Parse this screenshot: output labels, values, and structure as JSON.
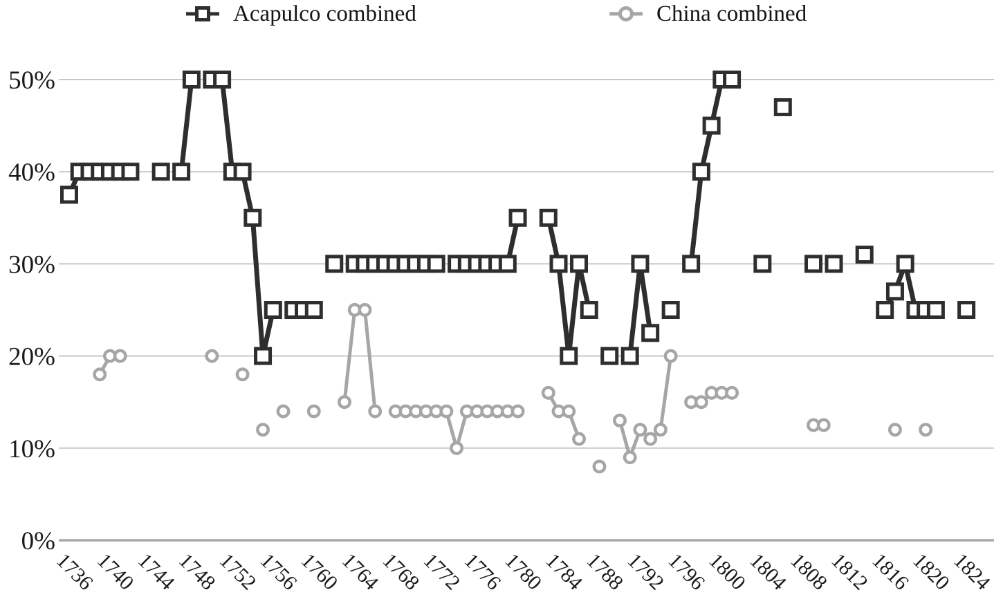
{
  "legend": {
    "items": [
      {
        "label": "Acapulco combined",
        "marker": "square-marker-icon"
      },
      {
        "label": "China combined",
        "marker": "circle-marker-icon"
      }
    ]
  },
  "chart_data": {
    "type": "line",
    "title": "",
    "xlabel": "",
    "ylabel": "",
    "grid": true,
    "legend_position": "top",
    "x_range": [
      1736,
      1824
    ],
    "ylim": [
      0,
      55
    ],
    "y_ticks": [
      {
        "value": 0,
        "label": "0%"
      },
      {
        "value": 10,
        "label": "10%"
      },
      {
        "value": 20,
        "label": "20%"
      },
      {
        "value": 30,
        "label": "30%"
      },
      {
        "value": 40,
        "label": "40%"
      },
      {
        "value": 50,
        "label": "50%"
      }
    ],
    "x_ticks": [
      "1736",
      "1740",
      "1744",
      "1748",
      "1752",
      "1756",
      "1760",
      "1764",
      "1768",
      "1772",
      "1776",
      "1780",
      "1784",
      "1788",
      "1792",
      "1796",
      "1800",
      "1804",
      "1808",
      "1812",
      "1816",
      "1820",
      "1824"
    ],
    "grid_color": "#c7c7c7",
    "axis_color": "#a9a9a9",
    "text_color": "#1a1a1a",
    "series": [
      {
        "name": "Acapulco combined",
        "slug": "acapulco",
        "marker": "square",
        "color": "#2e2e2e",
        "line_width": 7,
        "segments": [
          [
            [
              1736,
              37.5
            ],
            [
              1737,
              40
            ],
            [
              1738,
              40
            ],
            [
              1739,
              40
            ],
            [
              1740,
              40
            ],
            [
              1741,
              40
            ],
            [
              1742,
              40
            ]
          ],
          [
            [
              1745,
              40
            ]
          ],
          [
            [
              1747,
              40
            ],
            [
              1748,
              50
            ]
          ],
          [
            [
              1750,
              50
            ],
            [
              1751,
              50
            ],
            [
              1752,
              40
            ],
            [
              1753,
              40
            ],
            [
              1754,
              35
            ],
            [
              1755,
              20
            ],
            [
              1756,
              25
            ]
          ],
          [
            [
              1758,
              25
            ],
            [
              1759,
              25
            ],
            [
              1760,
              25
            ]
          ],
          [
            [
              1762,
              30
            ]
          ],
          [
            [
              1764,
              30
            ],
            [
              1765,
              30
            ],
            [
              1766,
              30
            ],
            [
              1767,
              30
            ],
            [
              1768,
              30
            ],
            [
              1769,
              30
            ],
            [
              1770,
              30
            ],
            [
              1771,
              30
            ],
            [
              1772,
              30
            ]
          ],
          [
            [
              1774,
              30
            ],
            [
              1775,
              30
            ],
            [
              1776,
              30
            ],
            [
              1777,
              30
            ],
            [
              1778,
              30
            ],
            [
              1779,
              30
            ],
            [
              1780,
              35
            ]
          ],
          [
            [
              1783,
              35
            ],
            [
              1784,
              30
            ],
            [
              1785,
              20
            ],
            [
              1786,
              30
            ],
            [
              1787,
              25
            ]
          ],
          [
            [
              1789,
              20
            ]
          ],
          [
            [
              1791,
              20
            ],
            [
              1792,
              30
            ],
            [
              1793,
              22.5
            ]
          ],
          [
            [
              1795,
              25
            ]
          ],
          [
            [
              1797,
              30
            ],
            [
              1798,
              40
            ],
            [
              1799,
              45
            ],
            [
              1800,
              50
            ],
            [
              1801,
              50
            ]
          ],
          [
            [
              1804,
              30
            ]
          ],
          [
            [
              1806,
              47
            ]
          ],
          [
            [
              1809,
              30
            ]
          ],
          [
            [
              1811,
              30
            ]
          ],
          [
            [
              1814,
              31
            ]
          ],
          [
            [
              1816,
              25
            ],
            [
              1817,
              27
            ],
            [
              1818,
              30
            ],
            [
              1819,
              25
            ],
            [
              1820,
              25
            ],
            [
              1821,
              25
            ]
          ],
          [
            [
              1824,
              25
            ]
          ]
        ]
      },
      {
        "name": "China combined",
        "slug": "china",
        "marker": "circle",
        "color": "#a6a6a6",
        "line_width": 5,
        "segments": [
          [
            [
              1739,
              18
            ],
            [
              1740,
              20
            ],
            [
              1741,
              20
            ]
          ],
          [
            [
              1750,
              20
            ]
          ],
          [
            [
              1753,
              18
            ]
          ],
          [
            [
              1755,
              12
            ]
          ],
          [
            [
              1757,
              14
            ]
          ],
          [
            [
              1760,
              14
            ]
          ],
          [
            [
              1763,
              15
            ],
            [
              1764,
              25
            ],
            [
              1765,
              25
            ],
            [
              1766,
              14
            ]
          ],
          [
            [
              1768,
              14
            ],
            [
              1769,
              14
            ],
            [
              1770,
              14
            ],
            [
              1771,
              14
            ],
            [
              1772,
              14
            ],
            [
              1773,
              14
            ],
            [
              1774,
              10
            ],
            [
              1775,
              14
            ],
            [
              1776,
              14
            ],
            [
              1777,
              14
            ],
            [
              1778,
              14
            ],
            [
              1779,
              14
            ],
            [
              1780,
              14
            ]
          ],
          [
            [
              1783,
              16
            ],
            [
              1784,
              14
            ],
            [
              1785,
              14
            ],
            [
              1786,
              11
            ]
          ],
          [
            [
              1788,
              8
            ]
          ],
          [
            [
              1790,
              13
            ],
            [
              1791,
              9
            ],
            [
              1792,
              12
            ],
            [
              1793,
              11
            ],
            [
              1794,
              12
            ],
            [
              1795,
              20
            ]
          ],
          [
            [
              1797,
              15
            ],
            [
              1798,
              15
            ],
            [
              1799,
              16
            ],
            [
              1800,
              16
            ],
            [
              1801,
              16
            ]
          ],
          [
            [
              1809,
              12.5
            ],
            [
              1810,
              12.5
            ]
          ],
          [
            [
              1817,
              12
            ]
          ],
          [
            [
              1820,
              12
            ]
          ]
        ]
      }
    ]
  }
}
